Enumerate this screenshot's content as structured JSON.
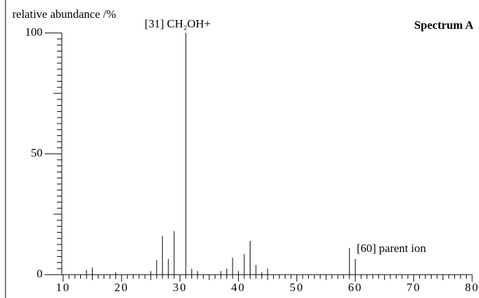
{
  "chart_data": {
    "type": "bar",
    "title": "Spectrum A",
    "y_label": "relative abundance /%",
    "annotations": [
      {
        "text": "[31] CH₂OH+",
        "x": 31
      },
      {
        "text": "[60] parent ion",
        "x": 60
      }
    ],
    "x": [
      14,
      15,
      19,
      25,
      26,
      27,
      28,
      29,
      31,
      32,
      33,
      37,
      38,
      39,
      40,
      41,
      42,
      43,
      44,
      45,
      59,
      60
    ],
    "values": [
      2,
      3,
      1,
      1.5,
      6,
      16,
      6.5,
      18,
      100,
      2.5,
      1.5,
      1.5,
      2.5,
      7,
      1.5,
      8.5,
      14,
      4,
      1,
      2.5,
      11,
      6.5
    ],
    "color": "#000000",
    "xlim": [
      10,
      80
    ],
    "xticks": [
      10,
      20,
      30,
      40,
      50,
      60,
      70,
      80
    ],
    "ylim": [
      0,
      100
    ],
    "yticks": [
      0,
      50,
      100
    ]
  }
}
